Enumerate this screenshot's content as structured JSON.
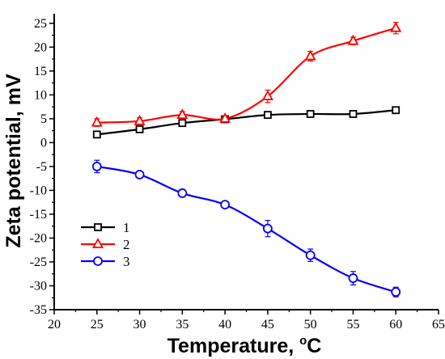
{
  "chart_data": {
    "type": "line",
    "xlabel": "Temperature, ",
    "xlabel_unit_sup": "o",
    "xlabel_unit": "C",
    "ylabel": "Zeta potential, mV",
    "xlim": [
      20,
      65
    ],
    "ylim": [
      -35,
      27
    ],
    "x_ticks": [
      20,
      25,
      30,
      35,
      40,
      45,
      50,
      55,
      60,
      65
    ],
    "y_ticks": [
      25,
      20,
      15,
      10,
      5,
      0,
      -5,
      -10,
      -15,
      -20,
      -25,
      -30,
      -35
    ],
    "x": [
      25,
      30,
      35,
      40,
      45,
      50,
      55,
      60
    ],
    "legend_position": "left-bottom",
    "grid": false,
    "series": [
      {
        "name": "1",
        "marker": "square",
        "color": "#000000",
        "values": [
          1.7,
          2.8,
          4.1,
          4.9,
          5.8,
          6.0,
          6.0,
          6.8
        ],
        "errors": [
          0.4,
          0.3,
          0.3,
          0.3,
          0.3,
          0.3,
          0.3,
          0.3
        ]
      },
      {
        "name": "2",
        "marker": "triangle",
        "color": "#ff0000",
        "values": [
          4.2,
          4.5,
          5.8,
          5.0,
          9.7,
          18.1,
          21.3,
          24.0
        ],
        "errors": [
          0.8,
          0.7,
          0.7,
          0.5,
          1.3,
          1.0,
          0.8,
          1.2
        ]
      },
      {
        "name": "3",
        "marker": "circle",
        "color": "#0000ff",
        "values": [
          -5.0,
          -6.7,
          -10.6,
          -13.0,
          -18.0,
          -23.6,
          -28.4,
          -31.3
        ],
        "errors": [
          1.3,
          0.6,
          0.8,
          0.4,
          1.7,
          1.3,
          1.4,
          1.0
        ]
      }
    ]
  }
}
